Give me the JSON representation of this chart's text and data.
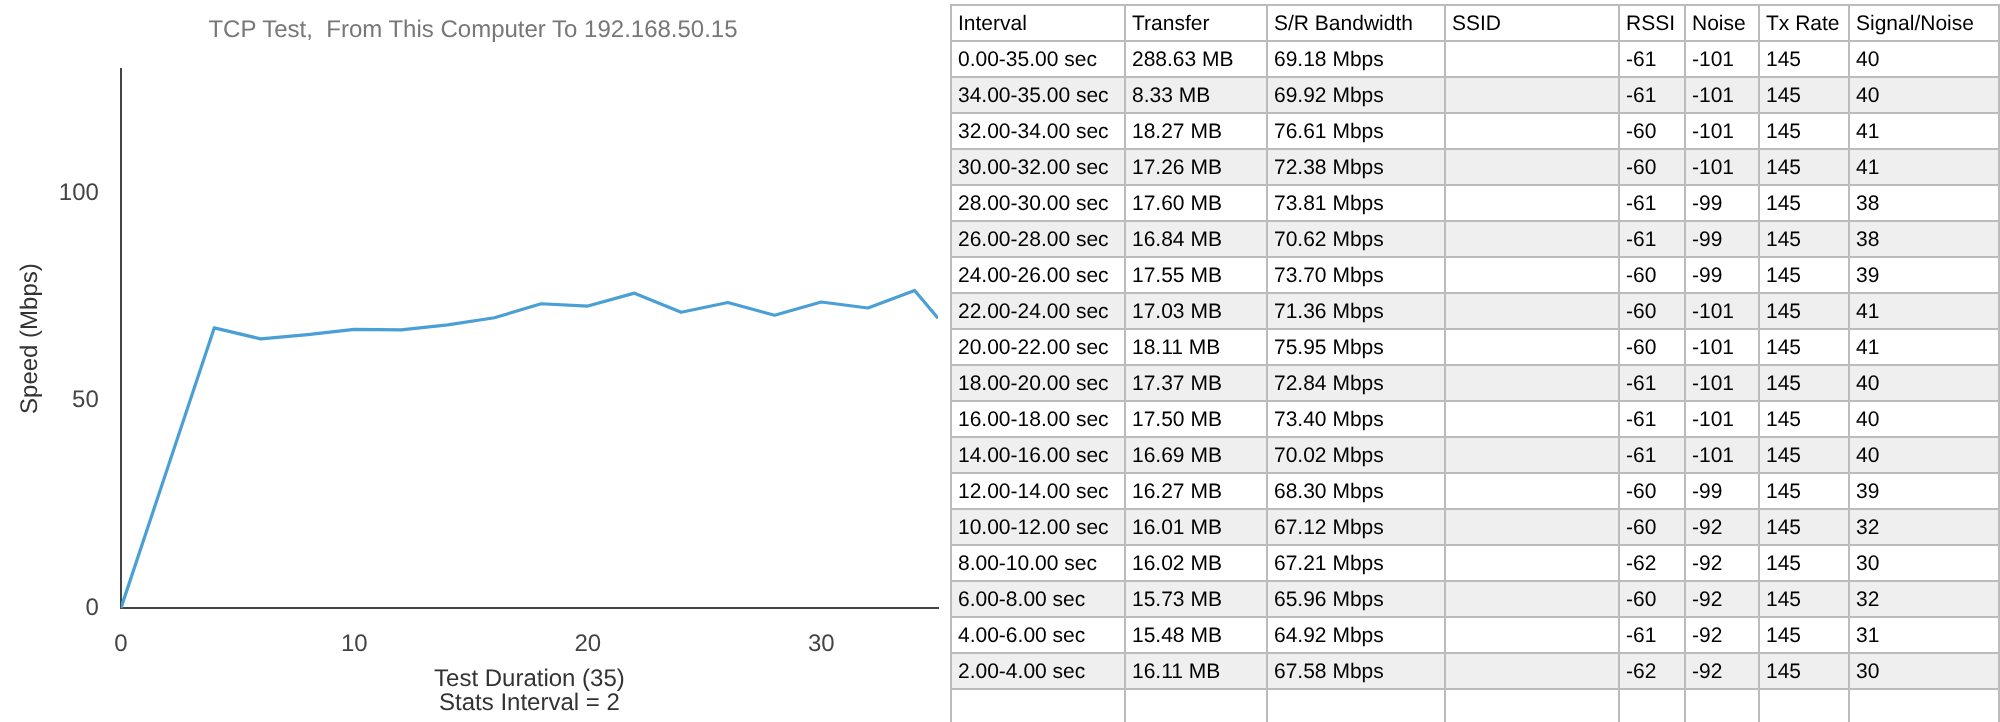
{
  "chart_data": [
    {
      "type": "line",
      "title": "TCP Test,  From This Computer To 192.168.50.15",
      "xlabel": "Test Duration (35)",
      "ylabel": "Speed (Mbps)",
      "annotations": [
        "Stats Interval = 2"
      ],
      "x": [
        0,
        4,
        6,
        8,
        10,
        12,
        14,
        16,
        18,
        20,
        22,
        24,
        26,
        28,
        30,
        32,
        34,
        35
      ],
      "series": [
        {
          "color": "#4a9fd4",
          "values": [
            0,
            67.58,
            64.92,
            65.96,
            67.21,
            67.12,
            68.3,
            70.02,
            73.4,
            72.84,
            75.95,
            71.36,
            73.7,
            70.62,
            73.81,
            72.38,
            76.61,
            69.92
          ]
        }
      ],
      "xlim": [
        0,
        35
      ],
      "xticks": [
        0,
        10,
        20,
        30
      ],
      "ylim": [
        0,
        130
      ],
      "yticks": [
        0,
        50,
        100
      ],
      "grid": false,
      "legend": false,
      "marker": "none",
      "line_style": "solid"
    },
    {
      "type": "other",
      "categories": [
        "Interval",
        "Transfer",
        "S/R Bandwidth",
        "SSID",
        "RSSI",
        "Noise",
        "Tx Rate",
        "Signal/Noise"
      ],
      "cell_labels": [
        [
          "0.00-35.00 sec",
          "288.63 MB",
          "69.18 Mbps",
          null,
          "-61",
          "-101",
          "145",
          "40"
        ],
        [
          "34.00-35.00 sec",
          "8.33 MB",
          "69.92 Mbps",
          null,
          "-61",
          "-101",
          "145",
          "40"
        ],
        [
          "32.00-34.00 sec",
          "18.27 MB",
          "76.61 Mbps",
          null,
          "-60",
          "-101",
          "145",
          "41"
        ],
        [
          "30.00-32.00 sec",
          "17.26 MB",
          "72.38 Mbps",
          null,
          "-60",
          "-101",
          "145",
          "41"
        ],
        [
          "28.00-30.00 sec",
          "17.60 MB",
          "73.81 Mbps",
          null,
          "-61",
          "-99",
          "145",
          "38"
        ],
        [
          "26.00-28.00 sec",
          "16.84 MB",
          "70.62 Mbps",
          null,
          "-61",
          "-99",
          "145",
          "38"
        ],
        [
          "24.00-26.00 sec",
          "17.55 MB",
          "73.70 Mbps",
          null,
          "-60",
          "-99",
          "145",
          "39"
        ],
        [
          "22.00-24.00 sec",
          "17.03 MB",
          "71.36 Mbps",
          null,
          "-60",
          "-101",
          "145",
          "41"
        ],
        [
          "20.00-22.00 sec",
          "18.11 MB",
          "75.95 Mbps",
          null,
          "-60",
          "-101",
          "145",
          "41"
        ],
        [
          "18.00-20.00 sec",
          "17.37 MB",
          "72.84 Mbps",
          null,
          "-61",
          "-101",
          "145",
          "40"
        ],
        [
          "16.00-18.00 sec",
          "17.50 MB",
          "73.40 Mbps",
          null,
          "-61",
          "-101",
          "145",
          "40"
        ],
        [
          "14.00-16.00 sec",
          "16.69 MB",
          "70.02 Mbps",
          null,
          "-61",
          "-101",
          "145",
          "40"
        ],
        [
          "12.00-14.00 sec",
          "16.27 MB",
          "68.30 Mbps",
          null,
          "-60",
          "-99",
          "145",
          "39"
        ],
        [
          "10.00-12.00 sec",
          "16.01 MB",
          "67.12 Mbps",
          null,
          "-60",
          "-92",
          "145",
          "32"
        ],
        [
          "8.00-10.00 sec",
          "16.02 MB",
          "67.21 Mbps",
          null,
          "-62",
          "-92",
          "145",
          "30"
        ],
        [
          "6.00-8.00 sec",
          "15.73 MB",
          "65.96 Mbps",
          null,
          "-60",
          "-92",
          "145",
          "32"
        ],
        [
          "4.00-6.00 sec",
          "15.48 MB",
          "64.92 Mbps",
          null,
          "-61",
          "-92",
          "145",
          "31"
        ],
        [
          "2.00-4.00 sec",
          "16.11 MB",
          "67.58 Mbps",
          null,
          "-62",
          "-92",
          "145",
          "30"
        ]
      ]
    }
  ]
}
